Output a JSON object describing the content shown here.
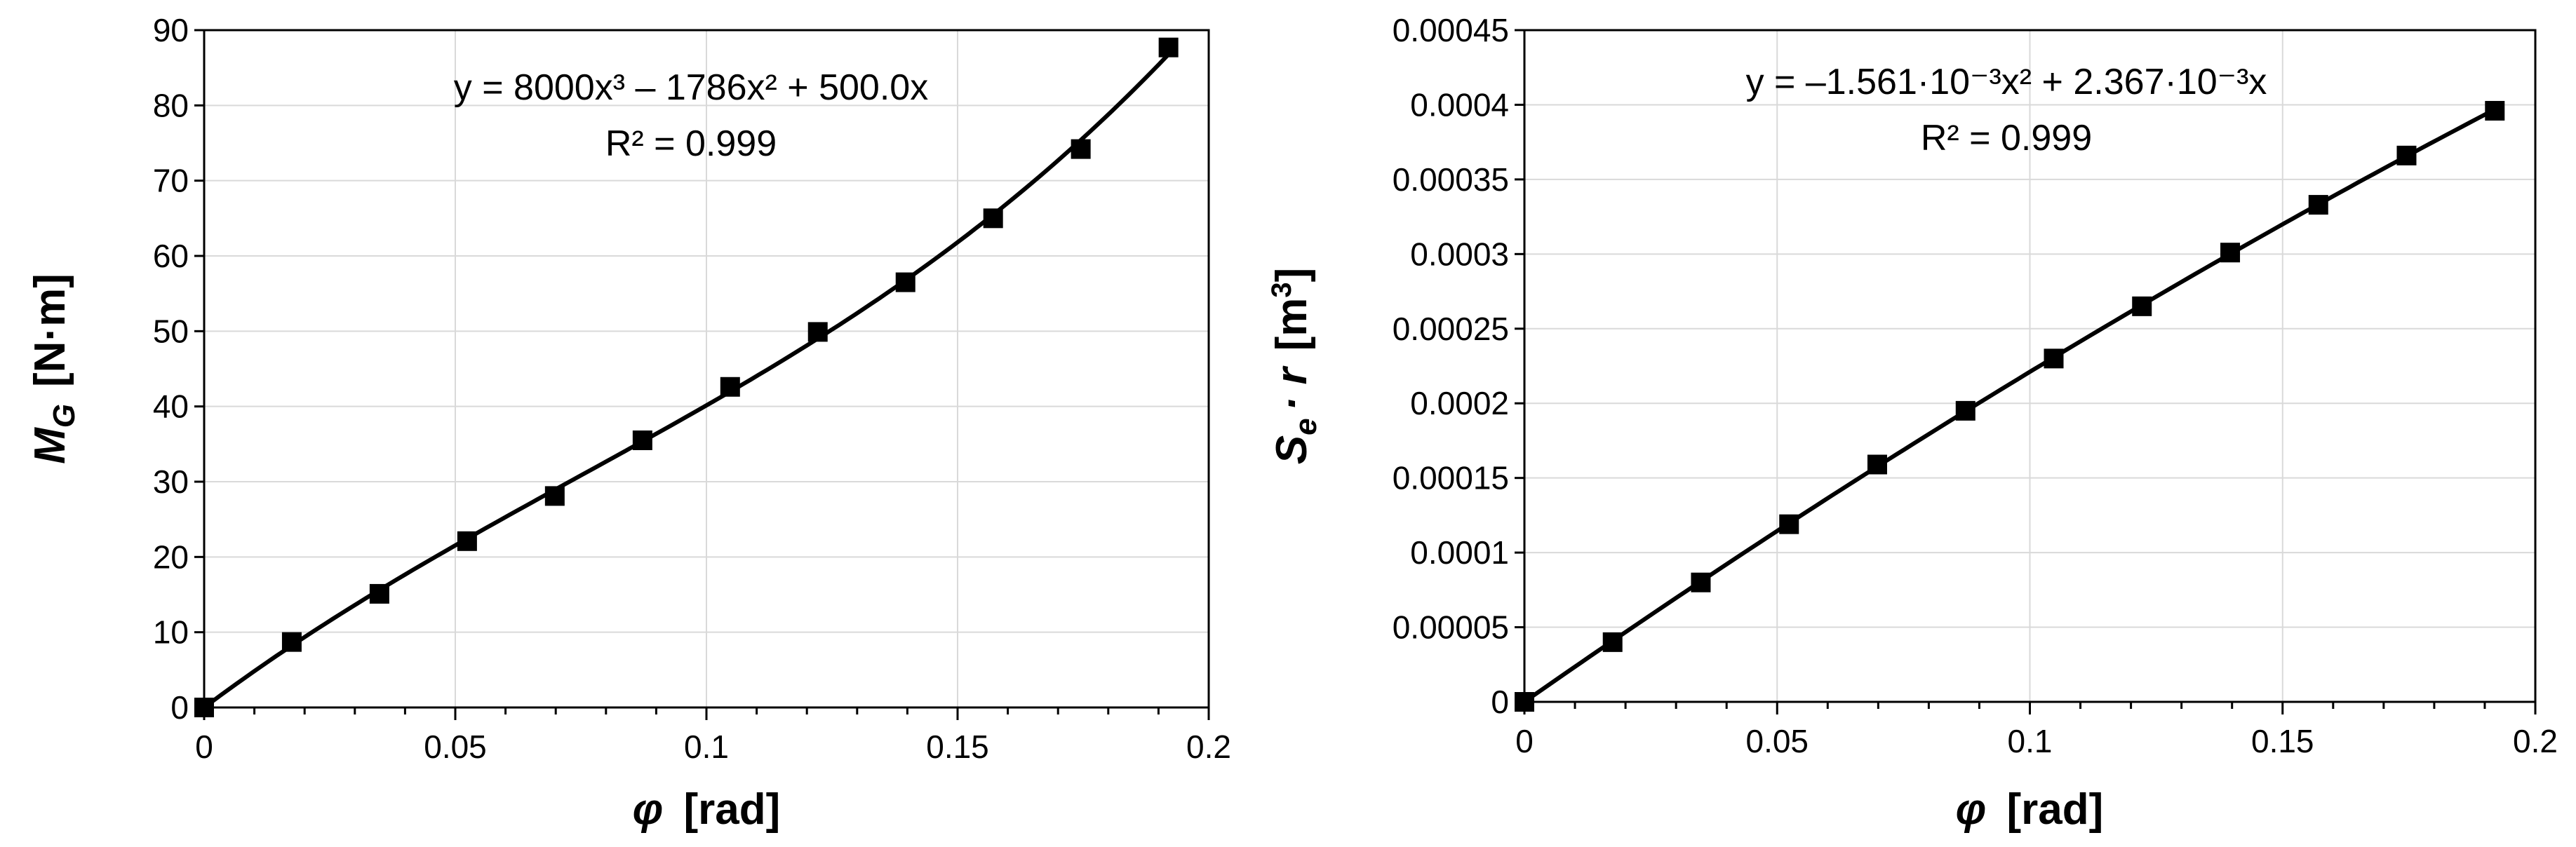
{
  "chart_data": [
    {
      "type": "scatter",
      "x": [
        0,
        0.01745,
        0.0349,
        0.05236,
        0.06981,
        0.08727,
        0.10472,
        0.12217,
        0.13963,
        0.15708,
        0.17453,
        0.19199
      ],
      "series": [
        {
          "values": [
            0,
            8.7,
            15.1,
            22.1,
            28.1,
            35.5,
            42.6,
            49.9,
            56.5,
            65.0,
            74.2,
            87.7
          ],
          "marker": "square",
          "color": "#000000",
          "trendline": {
            "type": "polynomial",
            "coefficients": [
              8000,
              -1786,
              500.0,
              0
            ]
          }
        }
      ],
      "equation": "y = 8000x³ – 1786x² + 500.0x",
      "r2": "R² = 0.999",
      "xlabel": {
        "symbol": "φ",
        "unit": "[rad]"
      },
      "ylabel": {
        "symbol": "M",
        "subscript": "G",
        "unit": "[N·m]"
      },
      "xlim": [
        0,
        0.2
      ],
      "ylim": [
        0,
        90
      ],
      "xticks": [
        0,
        0.05,
        0.1,
        0.15,
        0.2
      ],
      "xtick_labels": [
        "0",
        "0.05",
        "0.1",
        "0.15",
        "0.2"
      ],
      "yticks": [
        0,
        10,
        20,
        30,
        40,
        50,
        60,
        70,
        80,
        90
      ],
      "ytick_labels": [
        "0",
        "10",
        "20",
        "30",
        "40",
        "50",
        "60",
        "70",
        "80",
        "90"
      ],
      "grid": true,
      "legend": "none"
    },
    {
      "type": "scatter",
      "x": [
        0,
        0.01745,
        0.0349,
        0.05236,
        0.06981,
        0.08727,
        0.10472,
        0.12217,
        0.13963,
        0.15708,
        0.17453,
        0.19199
      ],
      "series": [
        {
          "values": [
            0,
            4e-05,
            8e-05,
            0.000119,
            0.000159,
            0.000195,
            0.00023,
            0.000265,
            0.000301,
            0.000333,
            0.000366,
            0.000396
          ],
          "marker": "square",
          "color": "#000000",
          "trendline": {
            "type": "polynomial",
            "coefficients": [
              -0.001561,
              0.002367,
              0
            ]
          }
        }
      ],
      "equation": "y = –1.561·10⁻³x² + 2.367·10⁻³x",
      "r2": "R² = 0.999",
      "xlabel": {
        "symbol": "φ",
        "unit": "[rad]"
      },
      "ylabel": {
        "symbol": "S",
        "subscript": "e",
        "middle": "· r",
        "unit": "[m",
        "superscript": "3",
        "close": "]"
      },
      "xlim": [
        0,
        0.2
      ],
      "ylim": [
        0,
        0.00045
      ],
      "xticks": [
        0,
        0.05,
        0.1,
        0.15,
        0.2
      ],
      "xtick_labels": [
        "0",
        "0.05",
        "0.1",
        "0.15",
        "0.2"
      ],
      "yticks": [
        0,
        5e-05,
        0.0001,
        0.00015,
        0.0002,
        0.00025,
        0.0003,
        0.00035,
        0.0004,
        0.00045
      ],
      "ytick_labels": [
        "0",
        "0.00005",
        "0.0001",
        "0.00015",
        "0.0002",
        "0.00025",
        "0.0003",
        "0.00035",
        "0.0004",
        "0.00045"
      ],
      "grid": true,
      "legend": "none"
    }
  ]
}
